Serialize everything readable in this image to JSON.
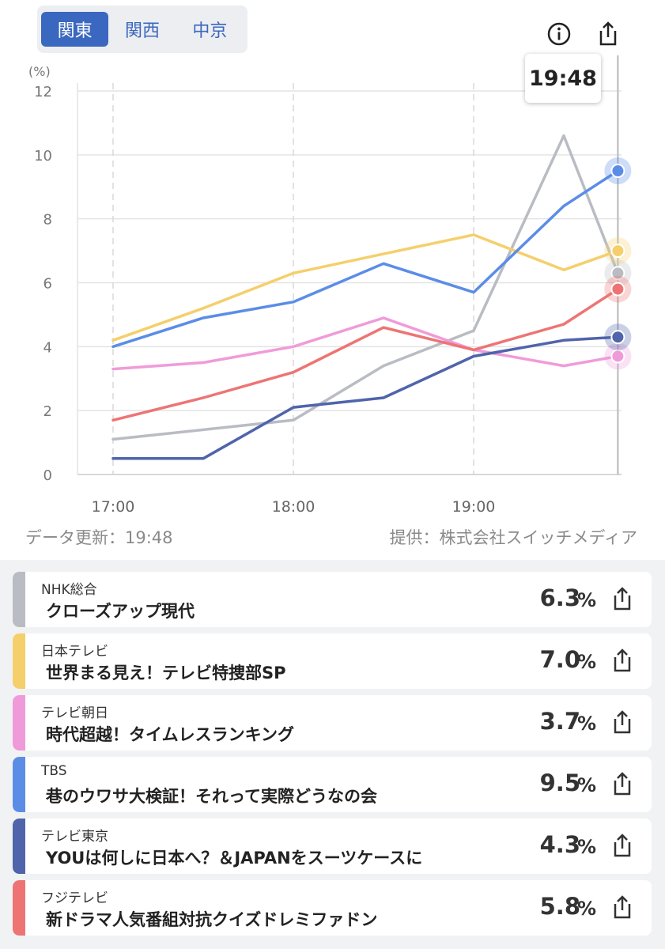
{
  "region_tabs": [
    {
      "label": "関東",
      "active": true
    },
    {
      "label": "関西",
      "active": false
    },
    {
      "label": "中京",
      "active": false
    }
  ],
  "icons": {
    "info": "info-icon",
    "share": "share-icon"
  },
  "tooltip_time": "19:48",
  "meta": {
    "updated": "データ更新：19:48",
    "provider": "提供：株式会社スイッチメディア"
  },
  "chart_data": {
    "type": "line",
    "ylabel": "(%)",
    "ylim": [
      0,
      12
    ],
    "yticks": [
      0,
      2,
      4,
      6,
      8,
      10,
      12
    ],
    "xticks": [
      "17:00",
      "18:00",
      "19:00"
    ],
    "x_minutes": [
      0,
      30,
      60,
      90,
      120,
      150,
      168
    ],
    "grid": true,
    "series": [
      {
        "name": "NHK総合",
        "color": "#b9bcc3",
        "values": [
          1.1,
          1.4,
          1.7,
          3.4,
          4.5,
          10.6,
          6.3
        ]
      },
      {
        "name": "日本テレビ",
        "color": "#f5cf6c",
        "values": [
          4.2,
          5.2,
          6.3,
          6.9,
          7.5,
          6.4,
          7.0
        ]
      },
      {
        "name": "テレビ朝日",
        "color": "#f09bd9",
        "values": [
          3.3,
          3.5,
          4.0,
          4.9,
          3.9,
          3.4,
          3.7
        ]
      },
      {
        "name": "TBS",
        "color": "#5b8de7",
        "values": [
          4.0,
          4.9,
          5.4,
          6.6,
          5.7,
          8.4,
          9.5
        ]
      },
      {
        "name": "テレビ東京",
        "color": "#4f64aa",
        "values": [
          0.5,
          0.5,
          2.1,
          2.4,
          3.7,
          4.2,
          4.3
        ]
      },
      {
        "name": "フジテレビ",
        "color": "#ee7474",
        "values": [
          1.7,
          2.4,
          3.2,
          4.6,
          3.9,
          4.7,
          5.8
        ]
      }
    ]
  },
  "programs": [
    {
      "channel": "NHK総合",
      "title": "クローズアップ現代",
      "value": "6.3",
      "unit": "%",
      "color": "#b9bcc3"
    },
    {
      "channel": "日本テレビ",
      "title": "世界まる見え！テレビ特捜部SP",
      "value": "7.0",
      "unit": "%",
      "color": "#f5cf6c"
    },
    {
      "channel": "テレビ朝日",
      "title": "時代超越！タイムレスランキング",
      "value": "3.7",
      "unit": "%",
      "color": "#f09bd9"
    },
    {
      "channel": "TBS",
      "title": "巷のウワサ大検証！それって実際どうなの会",
      "value": "9.5",
      "unit": "%",
      "color": "#5b8de7"
    },
    {
      "channel": "テレビ東京",
      "title": "YOUは何しに日本へ？＆JAPANをスーツケースに",
      "value": "4.3",
      "unit": "%",
      "color": "#4f64aa"
    },
    {
      "channel": "フジテレビ",
      "title": "新ドラマ人気番組対抗クイズドレミファドン",
      "value": "5.8",
      "unit": "%",
      "color": "#ee7474"
    }
  ]
}
